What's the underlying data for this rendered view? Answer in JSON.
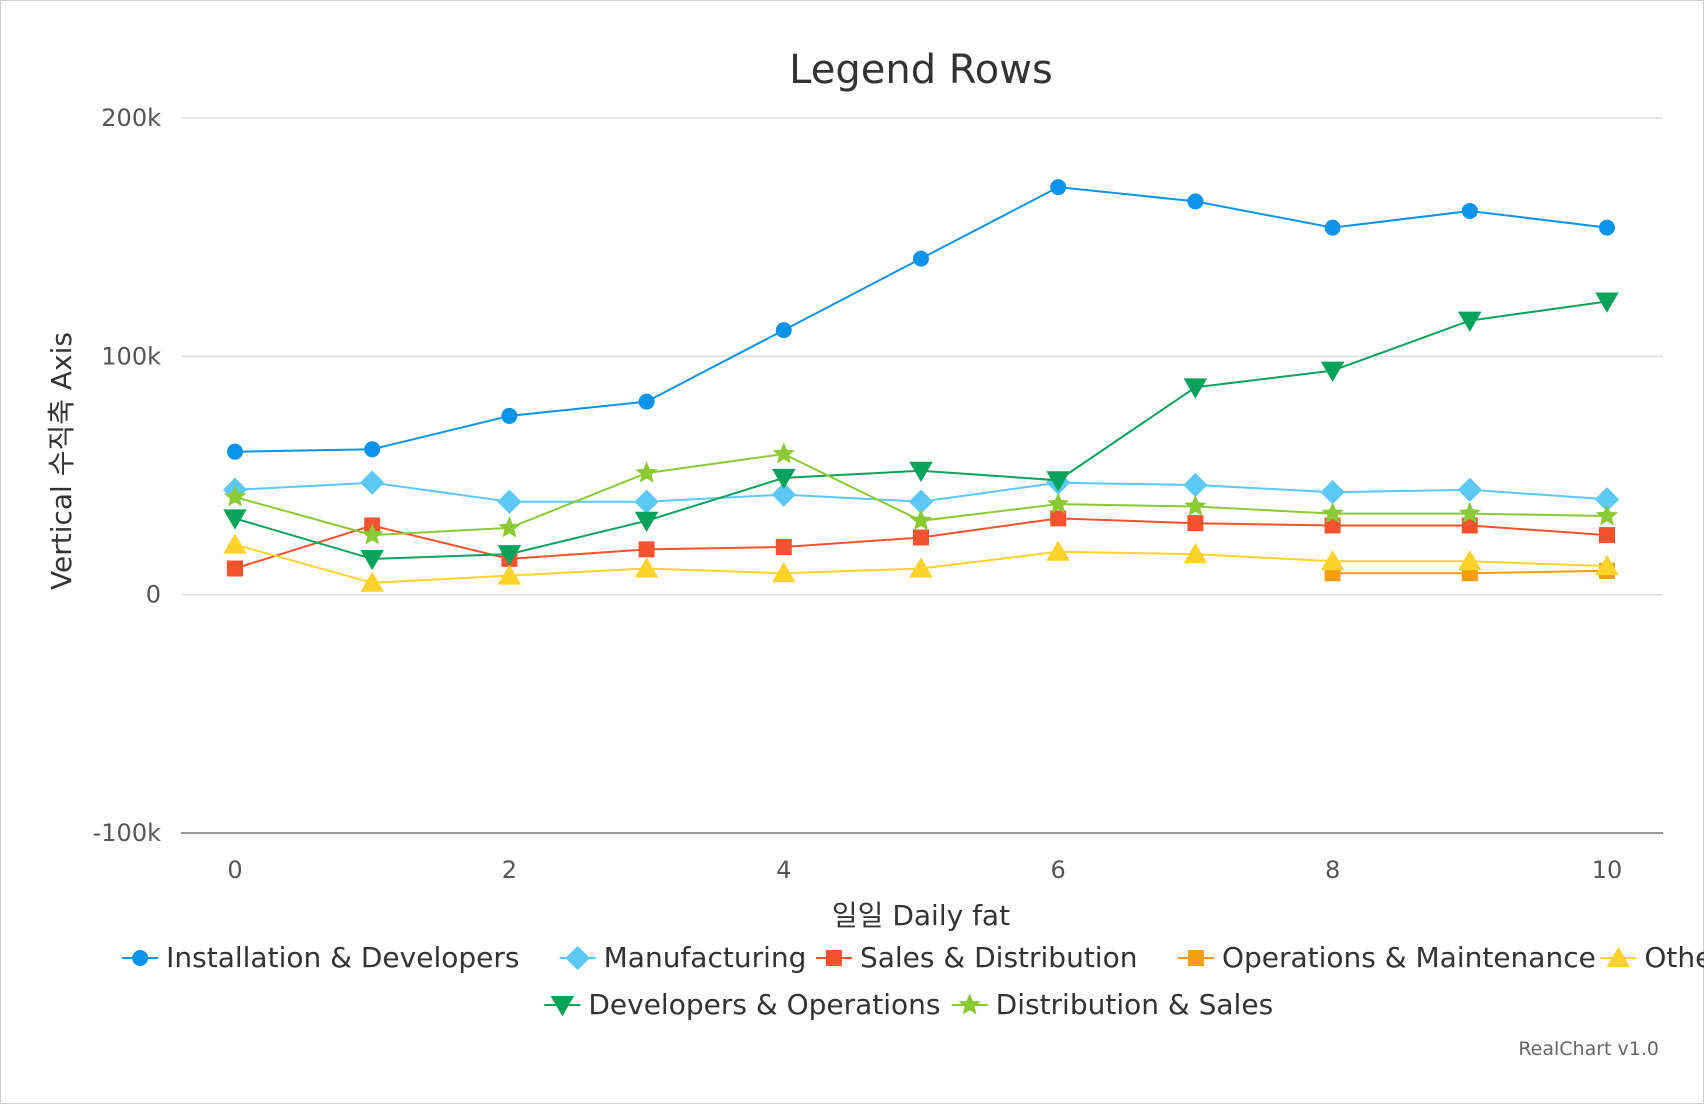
{
  "chart_data": {
    "type": "line",
    "title": "Legend Rows",
    "xlabel": "일일 Daily fat",
    "ylabel": "Vertical 수직축 Axis",
    "xlim": [
      0,
      10
    ],
    "ylim": [
      -100000,
      200000
    ],
    "x_ticks": [
      0,
      2,
      4,
      6,
      8,
      10
    ],
    "x_tick_labels": [
      "0",
      "2",
      "4",
      "6",
      "8",
      "10"
    ],
    "y_ticks": [
      -100000,
      0,
      100000,
      200000
    ],
    "y_tick_labels": [
      "-100k",
      "0",
      "100k",
      "200k"
    ],
    "grid": true,
    "legend": "bottom",
    "credit": "RealChart v1.0",
    "series": [
      {
        "name": "Installation & Developers",
        "color": "#0a93e8",
        "marker": "circle",
        "x": [
          0,
          1,
          2,
          3,
          4,
          5,
          6,
          7,
          8,
          9,
          10
        ],
        "values": [
          60000,
          61000,
          75000,
          81000,
          111000,
          141000,
          171000,
          165000,
          154000,
          161000,
          154000
        ]
      },
      {
        "name": "Manufacturing",
        "color": "#5bc8f5",
        "marker": "diamond",
        "x": [
          0,
          1,
          2,
          3,
          4,
          5,
          6,
          7,
          8,
          9,
          10
        ],
        "values": [
          44000,
          47000,
          39000,
          39000,
          42000,
          39000,
          47000,
          46000,
          43000,
          44000,
          40000
        ]
      },
      {
        "name": "Sales & Distribution",
        "color": "#f4532e",
        "marker": "square",
        "x": [
          0,
          1,
          2,
          3,
          4,
          5,
          6,
          7,
          8,
          9,
          10
        ],
        "values": [
          11000,
          29000,
          15000,
          19000,
          20000,
          24000,
          32000,
          30000,
          29000,
          29000,
          25000
        ]
      },
      {
        "name": "Operations & Maintenance",
        "color": "#f59d0a",
        "marker": "square",
        "x": [
          8,
          9,
          10
        ],
        "values": [
          9000,
          9000,
          10000
        ]
      },
      {
        "name": "Other",
        "color": "#fcd22b",
        "marker": "triangle",
        "x": [
          0,
          1,
          2,
          3,
          4,
          5,
          6,
          7,
          8,
          9,
          10
        ],
        "values": [
          21000,
          5000,
          8000,
          11000,
          9000,
          11000,
          18000,
          17000,
          14000,
          14000,
          12000
        ]
      },
      {
        "name": "Developers & Operations",
        "color": "#08a35a",
        "marker": "triangle-down",
        "x": [
          0,
          1,
          2,
          3,
          4,
          5,
          6,
          7,
          8,
          9,
          10
        ],
        "values": [
          32000,
          15000,
          17000,
          31000,
          49000,
          52000,
          48000,
          87000,
          94000,
          115000,
          123000
        ]
      },
      {
        "name": "Distribution & Sales",
        "color": "#8bc935",
        "marker": "star",
        "x": [
          0,
          1,
          2,
          3,
          4,
          5,
          6,
          7,
          8,
          9,
          10
        ],
        "values": [
          41000,
          25000,
          28000,
          51000,
          59000,
          31000,
          38000,
          37000,
          34000,
          34000,
          33000
        ]
      }
    ]
  }
}
